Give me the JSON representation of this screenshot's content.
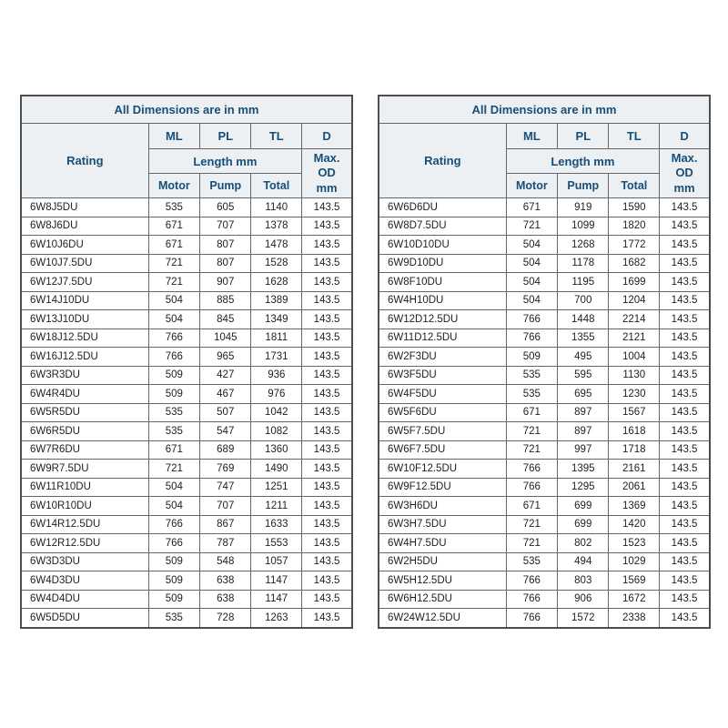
{
  "tables": [
    {
      "title": "All Dimensions are in mm",
      "header": {
        "rating": "Rating",
        "ml": "ML",
        "pl": "PL",
        "tl": "TL",
        "d": "D",
        "length_group": "Length mm",
        "max_od_lines": [
          "Max.",
          "OD",
          "mm"
        ],
        "motor": "Motor",
        "pump": "Pump",
        "total": "Total"
      },
      "rows": [
        [
          "6W8J5DU",
          "535",
          "605",
          "1140",
          "143.5"
        ],
        [
          "6W8J6DU",
          "671",
          "707",
          "1378",
          "143.5"
        ],
        [
          "6W10J6DU",
          "671",
          "807",
          "1478",
          "143.5"
        ],
        [
          "6W10J7.5DU",
          "721",
          "807",
          "1528",
          "143.5"
        ],
        [
          "6W12J7.5DU",
          "721",
          "907",
          "1628",
          "143.5"
        ],
        [
          "6W14J10DU",
          "504",
          "885",
          "1389",
          "143.5"
        ],
        [
          "6W13J10DU",
          "504",
          "845",
          "1349",
          "143.5"
        ],
        [
          "6W18J12.5DU",
          "766",
          "1045",
          "1811",
          "143.5"
        ],
        [
          "6W16J12.5DU",
          "766",
          "965",
          "1731",
          "143.5"
        ],
        [
          "6W3R3DU",
          "509",
          "427",
          "936",
          "143.5"
        ],
        [
          "6W4R4DU",
          "509",
          "467",
          "976",
          "143.5"
        ],
        [
          "6W5R5DU",
          "535",
          "507",
          "1042",
          "143.5"
        ],
        [
          "6W6R5DU",
          "535",
          "547",
          "1082",
          "143.5"
        ],
        [
          "6W7R6DU",
          "671",
          "689",
          "1360",
          "143.5"
        ],
        [
          "6W9R7.5DU",
          "721",
          "769",
          "1490",
          "143.5"
        ],
        [
          "6W11R10DU",
          "504",
          "747",
          "1251",
          "143.5"
        ],
        [
          "6W10R10DU",
          "504",
          "707",
          "1211",
          "143.5"
        ],
        [
          "6W14R12.5DU",
          "766",
          "867",
          "1633",
          "143.5"
        ],
        [
          "6W12R12.5DU",
          "766",
          "787",
          "1553",
          "143.5"
        ],
        [
          "6W3D3DU",
          "509",
          "548",
          "1057",
          "143.5"
        ],
        [
          "6W4D3DU",
          "509",
          "638",
          "1147",
          "143.5"
        ],
        [
          "6W4D4DU",
          "509",
          "638",
          "1147",
          "143.5"
        ],
        [
          "6W5D5DU",
          "535",
          "728",
          "1263",
          "143.5"
        ]
      ]
    },
    {
      "title": "All Dimensions are in mm",
      "header": {
        "rating": "Rating",
        "ml": "ML",
        "pl": "PL",
        "tl": "TL",
        "d": "D",
        "length_group": "Length mm",
        "max_od_lines": [
          "Max.",
          "OD",
          "mm"
        ],
        "motor": "Motor",
        "pump": "Pump",
        "total": "Total"
      },
      "rows": [
        [
          "6W6D6DU",
          "671",
          "919",
          "1590",
          "143.5"
        ],
        [
          "6W8D7.5DU",
          "721",
          "1099",
          "1820",
          "143.5"
        ],
        [
          "6W10D10DU",
          "504",
          "1268",
          "1772",
          "143.5"
        ],
        [
          "6W9D10DU",
          "504",
          "1178",
          "1682",
          "143.5"
        ],
        [
          "6W8F10DU",
          "504",
          "1195",
          "1699",
          "143.5"
        ],
        [
          "6W4H10DU",
          "504",
          "700",
          "1204",
          "143.5"
        ],
        [
          "6W12D12.5DU",
          "766",
          "1448",
          "2214",
          "143.5"
        ],
        [
          "6W11D12.5DU",
          "766",
          "1355",
          "2121",
          "143.5"
        ],
        [
          "6W2F3DU",
          "509",
          "495",
          "1004",
          "143.5"
        ],
        [
          "6W3F5DU",
          "535",
          "595",
          "1130",
          "143.5"
        ],
        [
          "6W4F5DU",
          "535",
          "695",
          "1230",
          "143.5"
        ],
        [
          "6W5F6DU",
          "671",
          "897",
          "1567",
          "143.5"
        ],
        [
          "6W5F7.5DU",
          "721",
          "897",
          "1618",
          "143.5"
        ],
        [
          "6W6F7.5DU",
          "721",
          "997",
          "1718",
          "143.5"
        ],
        [
          "6W10F12.5DU",
          "766",
          "1395",
          "2161",
          "143.5"
        ],
        [
          "6W9F12.5DU",
          "766",
          "1295",
          "2061",
          "143.5"
        ],
        [
          "6W3H6DU",
          "671",
          "699",
          "1369",
          "143.5"
        ],
        [
          "6W3H7.5DU",
          "721",
          "699",
          "1420",
          "143.5"
        ],
        [
          "6W4H7.5DU",
          "721",
          "802",
          "1523",
          "143.5"
        ],
        [
          "6W2H5DU",
          "535",
          "494",
          "1029",
          "143.5"
        ],
        [
          "6W5H12.5DU",
          "766",
          "803",
          "1569",
          "143.5"
        ],
        [
          "6W6H12.5DU",
          "766",
          "906",
          "1672",
          "143.5"
        ],
        [
          "6W24W12.5DU",
          "766",
          "1572",
          "2338",
          "143.5"
        ]
      ]
    }
  ],
  "colors": {
    "header_text": "#174f78",
    "header_bg": "#ecf0f3",
    "data_text": "#1e1f21",
    "grid_line": "#63676b"
  }
}
